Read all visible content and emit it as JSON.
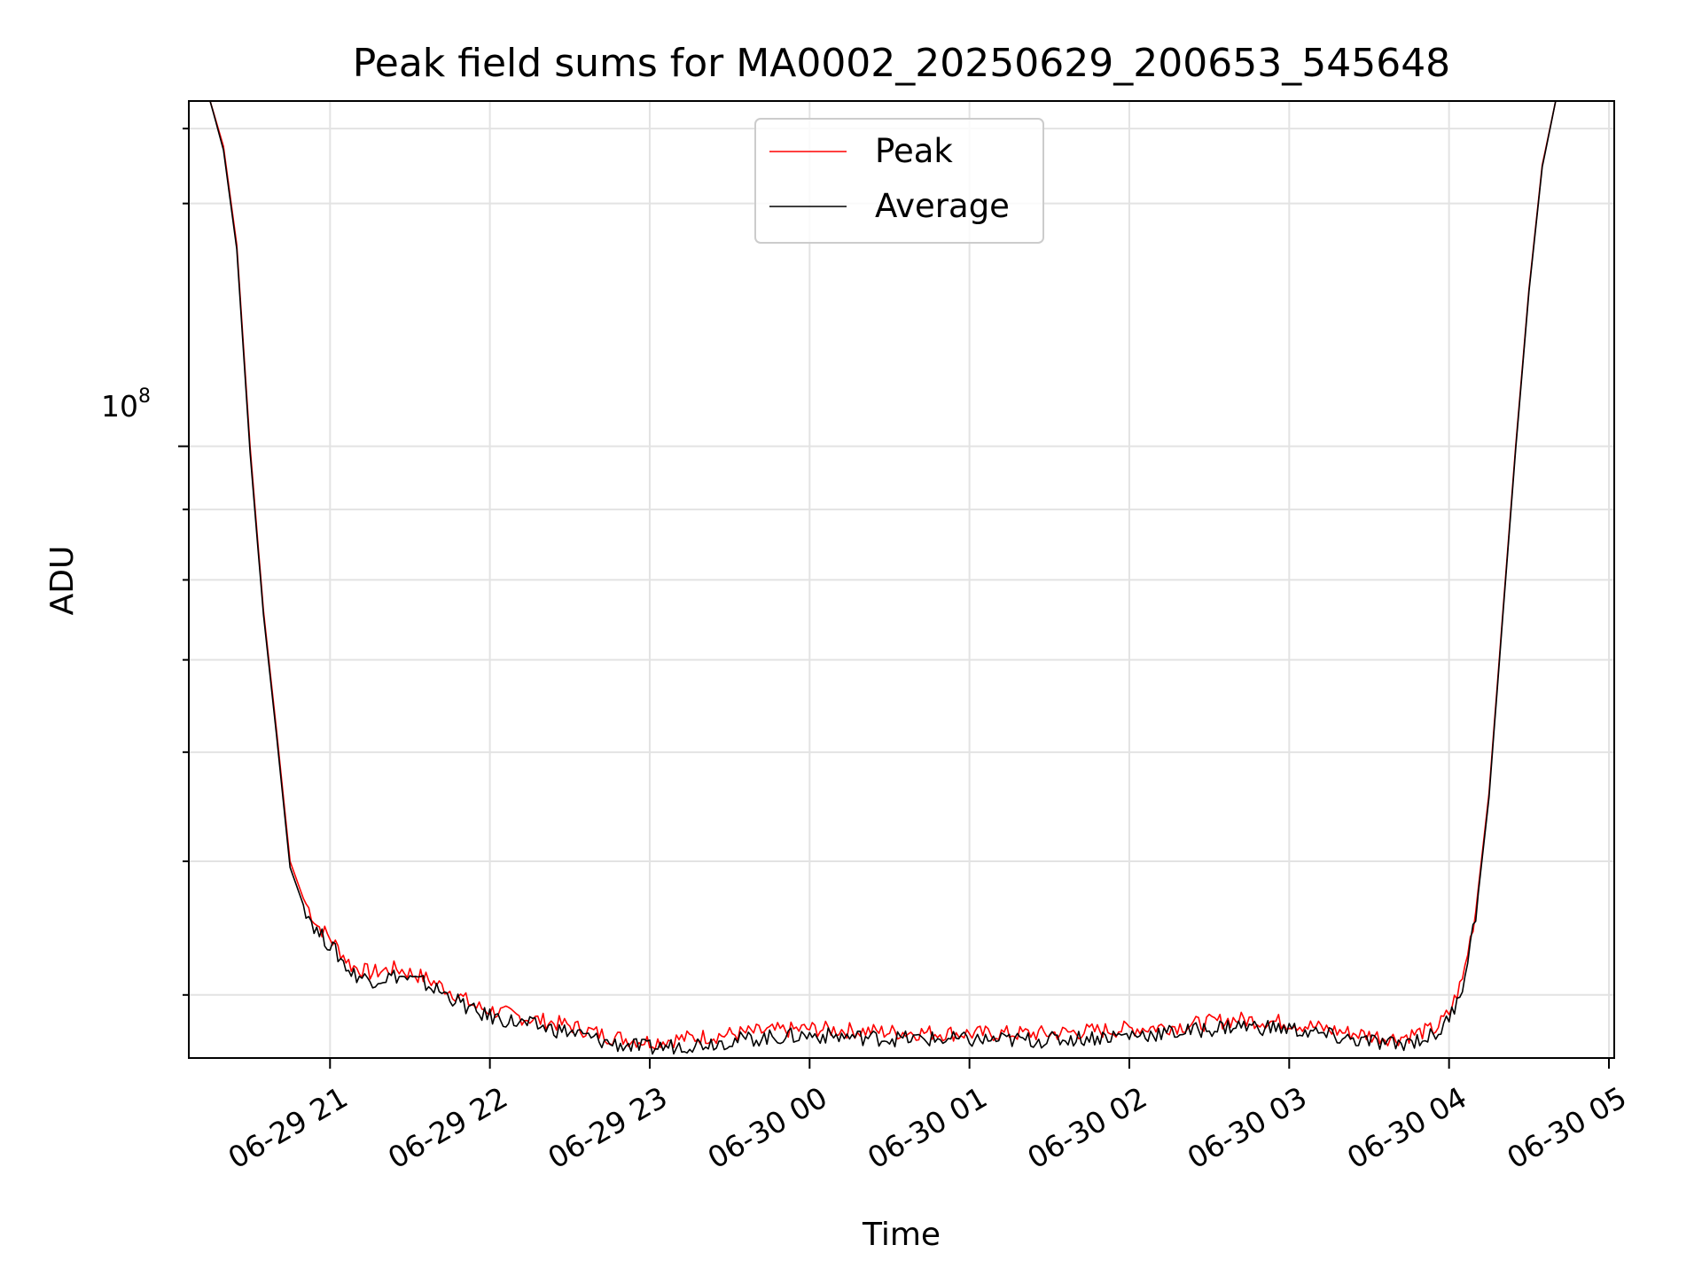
{
  "chart_data": {
    "type": "line",
    "title": "Peak field sums for MA0002_20250629_200653_545648",
    "xlabel": "Time",
    "ylabel": "ADU",
    "yscale": "log",
    "grid": true,
    "legend_position": "top-center",
    "x_ticks": [
      "06-29 21",
      "06-29 22",
      "06-29 23",
      "06-30 00",
      "06-30 01",
      "06-30 02",
      "06-30 03",
      "06-30 04",
      "06-30 05"
    ],
    "y_tick_label": {
      "base": "10",
      "exponent": "8"
    },
    "xlim": [
      "2025-06-29 20:07",
      "2025-06-30 05:02"
    ],
    "ylim": [
      36000000,
      178000000
    ],
    "series": [
      {
        "name": "Peak",
        "color": "#ff0000",
        "x": [
          "2025-06-29 20:07",
          "2025-06-29 20:15",
          "2025-06-29 20:20",
          "2025-06-29 20:25",
          "2025-06-29 20:30",
          "2025-06-29 20:35",
          "2025-06-29 20:40",
          "2025-06-29 20:45",
          "2025-06-29 20:50",
          "2025-06-29 20:55",
          "2025-06-29 21:00",
          "2025-06-29 21:08",
          "2025-06-29 21:15",
          "2025-06-29 21:25",
          "2025-06-29 21:35",
          "2025-06-29 21:45",
          "2025-06-29 21:55",
          "2025-06-29 22:10",
          "2025-06-29 22:30",
          "2025-06-29 22:45",
          "2025-06-29 23:00",
          "2025-06-29 23:20",
          "2025-06-29 23:40",
          "2025-06-30 00:00",
          "2025-06-30 00:30",
          "2025-06-30 01:00",
          "2025-06-30 01:30",
          "2025-06-30 02:00",
          "2025-06-30 02:20",
          "2025-06-30 02:40",
          "2025-06-30 03:00",
          "2025-06-30 03:20",
          "2025-06-30 03:40",
          "2025-06-30 03:55",
          "2025-06-30 04:00",
          "2025-06-30 04:05",
          "2025-06-30 04:10",
          "2025-06-30 04:15",
          "2025-06-30 04:20",
          "2025-06-30 04:25",
          "2025-06-30 04:30",
          "2025-06-30 04:35",
          "2025-06-30 04:40",
          "2025-06-30 04:45",
          "2025-06-30 04:50"
        ],
        "values": [
          178000000,
          178000000,
          165000000,
          140000000,
          100000000,
          76000000,
          62000000,
          50000000,
          47000000,
          45000000,
          44000000,
          42000000,
          41500000,
          41800000,
          41200000,
          40300000,
          39200000,
          38600000,
          38000000,
          37300000,
          37000000,
          37300000,
          37600000,
          37800000,
          37600000,
          37500000,
          37500000,
          37800000,
          38000000,
          38400000,
          38200000,
          37600000,
          37200000,
          37800000,
          38800000,
          41000000,
          46000000,
          56000000,
          75000000,
          100000000,
          130000000,
          160000000,
          178000000,
          178000000,
          178000000
        ]
      },
      {
        "name": "Average",
        "color": "#000000",
        "x": [
          "2025-06-29 20:07",
          "2025-06-29 20:15",
          "2025-06-29 20:20",
          "2025-06-29 20:25",
          "2025-06-29 20:30",
          "2025-06-29 20:35",
          "2025-06-29 20:40",
          "2025-06-29 20:45",
          "2025-06-29 20:50",
          "2025-06-29 20:55",
          "2025-06-29 21:00",
          "2025-06-29 21:08",
          "2025-06-29 21:15",
          "2025-06-29 21:25",
          "2025-06-29 21:35",
          "2025-06-29 21:45",
          "2025-06-29 21:55",
          "2025-06-29 22:10",
          "2025-06-29 22:30",
          "2025-06-29 22:45",
          "2025-06-29 23:00",
          "2025-06-29 23:20",
          "2025-06-29 23:40",
          "2025-06-30 00:00",
          "2025-06-30 00:30",
          "2025-06-30 01:00",
          "2025-06-30 01:30",
          "2025-06-30 02:00",
          "2025-06-30 02:20",
          "2025-06-30 02:40",
          "2025-06-30 03:00",
          "2025-06-30 03:20",
          "2025-06-30 03:40",
          "2025-06-30 03:55",
          "2025-06-30 04:00",
          "2025-06-30 04:05",
          "2025-06-30 04:10",
          "2025-06-30 04:15",
          "2025-06-30 04:20",
          "2025-06-30 04:25",
          "2025-06-30 04:30",
          "2025-06-30 04:35",
          "2025-06-30 04:40",
          "2025-06-30 04:45",
          "2025-06-30 04:50"
        ],
        "values": [
          178000000,
          178000000,
          164000000,
          139000000,
          99000000,
          75500000,
          61500000,
          49500000,
          46500000,
          44500000,
          43500000,
          41500000,
          41000000,
          41300000,
          40800000,
          39900000,
          38800000,
          38200000,
          37600000,
          36900000,
          36600000,
          36900000,
          37200000,
          37400000,
          37200000,
          37100000,
          37100000,
          37400000,
          37600000,
          38000000,
          37800000,
          37200000,
          36800000,
          37400000,
          38400000,
          40600000,
          45600000,
          55600000,
          74600000,
          99500000,
          129500000,
          159500000,
          178000000,
          178000000,
          178000000
        ]
      }
    ]
  }
}
